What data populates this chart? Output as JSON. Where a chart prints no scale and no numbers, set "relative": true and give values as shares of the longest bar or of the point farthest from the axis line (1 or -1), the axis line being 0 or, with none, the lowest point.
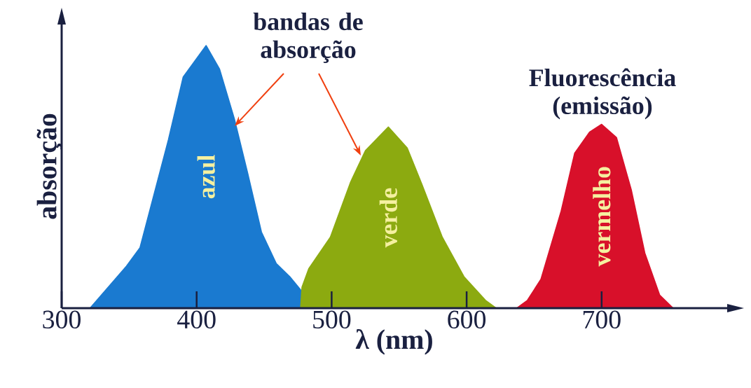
{
  "chart_data": {
    "type": "area",
    "relative": true,
    "xlabel": "λ (nm)",
    "ylabel": "absorção",
    "xlim": [
      300,
      793
    ],
    "xticks": [
      300,
      400,
      500,
      600,
      700
    ],
    "annotations": [
      "bandas de absorção",
      "Fluorescência (emissão)"
    ],
    "series": [
      {
        "name": "azul",
        "color": "#1a7ad0",
        "x": [
          321,
          348,
          358,
          379,
          390,
          407,
          417,
          428,
          438,
          448,
          459,
          469,
          477,
          479
        ],
        "values": [
          0,
          0.16,
          0.23,
          0.64,
          0.88,
          1.0,
          0.91,
          0.72,
          0.51,
          0.29,
          0.17,
          0.12,
          0.07,
          0
        ]
      },
      {
        "name": "verde",
        "color": "#8caa10",
        "x": [
          477,
          478,
          483,
          499,
          514,
          525,
          542,
          556,
          567,
          582,
          598,
          614,
          622
        ],
        "values": [
          0,
          0.08,
          0.15,
          0.27,
          0.48,
          0.6,
          0.69,
          0.61,
          0.47,
          0.27,
          0.12,
          0.03,
          0
        ]
      },
      {
        "name": "vermelho",
        "color": "#d8102a",
        "x": [
          637,
          645,
          655,
          670,
          680,
          691,
          700,
          711,
          722,
          732,
          743,
          753
        ],
        "values": [
          0,
          0.03,
          0.11,
          0.37,
          0.59,
          0.67,
          0.7,
          0.65,
          0.45,
          0.21,
          0.05,
          0
        ]
      }
    ]
  }
}
